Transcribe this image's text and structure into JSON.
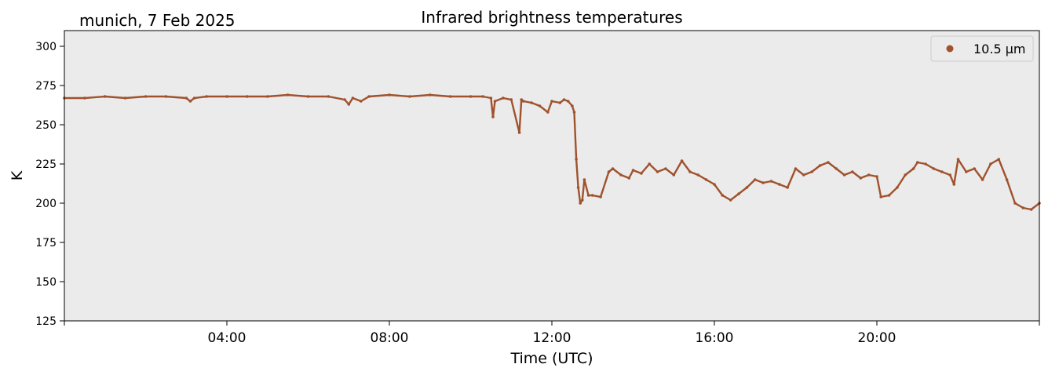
{
  "location_label": "munich, 7 Feb 2025",
  "chart_data": {
    "type": "scatter",
    "title": "Infrared brightness temperatures",
    "xlabel": "Time (UTC)",
    "ylabel": "K",
    "xlim": [
      0,
      24
    ],
    "ylim": [
      125,
      310
    ],
    "x_ticks": [
      4,
      8,
      12,
      16,
      20
    ],
    "x_tick_labels": [
      "04:00",
      "08:00",
      "12:00",
      "16:00",
      "20:00"
    ],
    "y_ticks": [
      125,
      150,
      175,
      200,
      225,
      250,
      275,
      300
    ],
    "y_tick_labels": [
      "125",
      "150",
      "175",
      "200",
      "225",
      "250",
      "275",
      "300"
    ],
    "grid": false,
    "legend": {
      "placement": "top-right",
      "entries": [
        "10.5 µm"
      ]
    },
    "colors": {
      "series": "#a0522d",
      "plot_background": "#ebebeb"
    },
    "series": [
      {
        "name": "10.5 µm",
        "x": [
          0.0,
          0.5,
          1.0,
          1.5,
          2.0,
          2.5,
          3.0,
          3.1,
          3.2,
          3.5,
          4.0,
          4.5,
          5.0,
          5.5,
          6.0,
          6.5,
          6.9,
          7.0,
          7.1,
          7.3,
          7.5,
          8.0,
          8.5,
          9.0,
          9.5,
          10.0,
          10.3,
          10.5,
          10.55,
          10.6,
          10.8,
          11.0,
          11.2,
          11.25,
          11.3,
          11.5,
          11.7,
          11.9,
          12.0,
          12.2,
          12.3,
          12.4,
          12.5,
          12.55,
          12.6,
          12.65,
          12.7,
          12.75,
          12.8,
          12.9,
          13.0,
          13.2,
          13.4,
          13.5,
          13.7,
          13.9,
          14.0,
          14.2,
          14.4,
          14.6,
          14.8,
          15.0,
          15.2,
          15.4,
          15.6,
          15.8,
          16.0,
          16.2,
          16.4,
          16.6,
          16.8,
          17.0,
          17.2,
          17.4,
          17.6,
          17.8,
          18.0,
          18.2,
          18.4,
          18.6,
          18.8,
          19.0,
          19.2,
          19.4,
          19.6,
          19.8,
          20.0,
          20.1,
          20.3,
          20.5,
          20.7,
          20.9,
          21.0,
          21.2,
          21.4,
          21.6,
          21.8,
          21.9,
          22.0,
          22.2,
          22.4,
          22.6,
          22.8,
          23.0,
          23.2,
          23.4,
          23.6,
          23.8,
          24.0
        ],
        "y": [
          267,
          267,
          268,
          267,
          268,
          268,
          267,
          265,
          267,
          268,
          268,
          268,
          268,
          269,
          268,
          268,
          266,
          263,
          267,
          265,
          268,
          269,
          268,
          269,
          268,
          268,
          268,
          267,
          255,
          265,
          267,
          266,
          245,
          266,
          265,
          264,
          262,
          258,
          265,
          264,
          266,
          265,
          262,
          258,
          228,
          210,
          200,
          202,
          215,
          205,
          205,
          204,
          220,
          222,
          218,
          216,
          221,
          219,
          225,
          220,
          222,
          218,
          227,
          220,
          218,
          215,
          212,
          205,
          202,
          206,
          210,
          215,
          213,
          214,
          212,
          210,
          222,
          218,
          220,
          224,
          226,
          222,
          218,
          220,
          216,
          218,
          217,
          204,
          205,
          210,
          218,
          222,
          226,
          225,
          222,
          220,
          218,
          212,
          228,
          220,
          222,
          215,
          225,
          228,
          215,
          200,
          197,
          196,
          200
        ]
      }
    ]
  }
}
